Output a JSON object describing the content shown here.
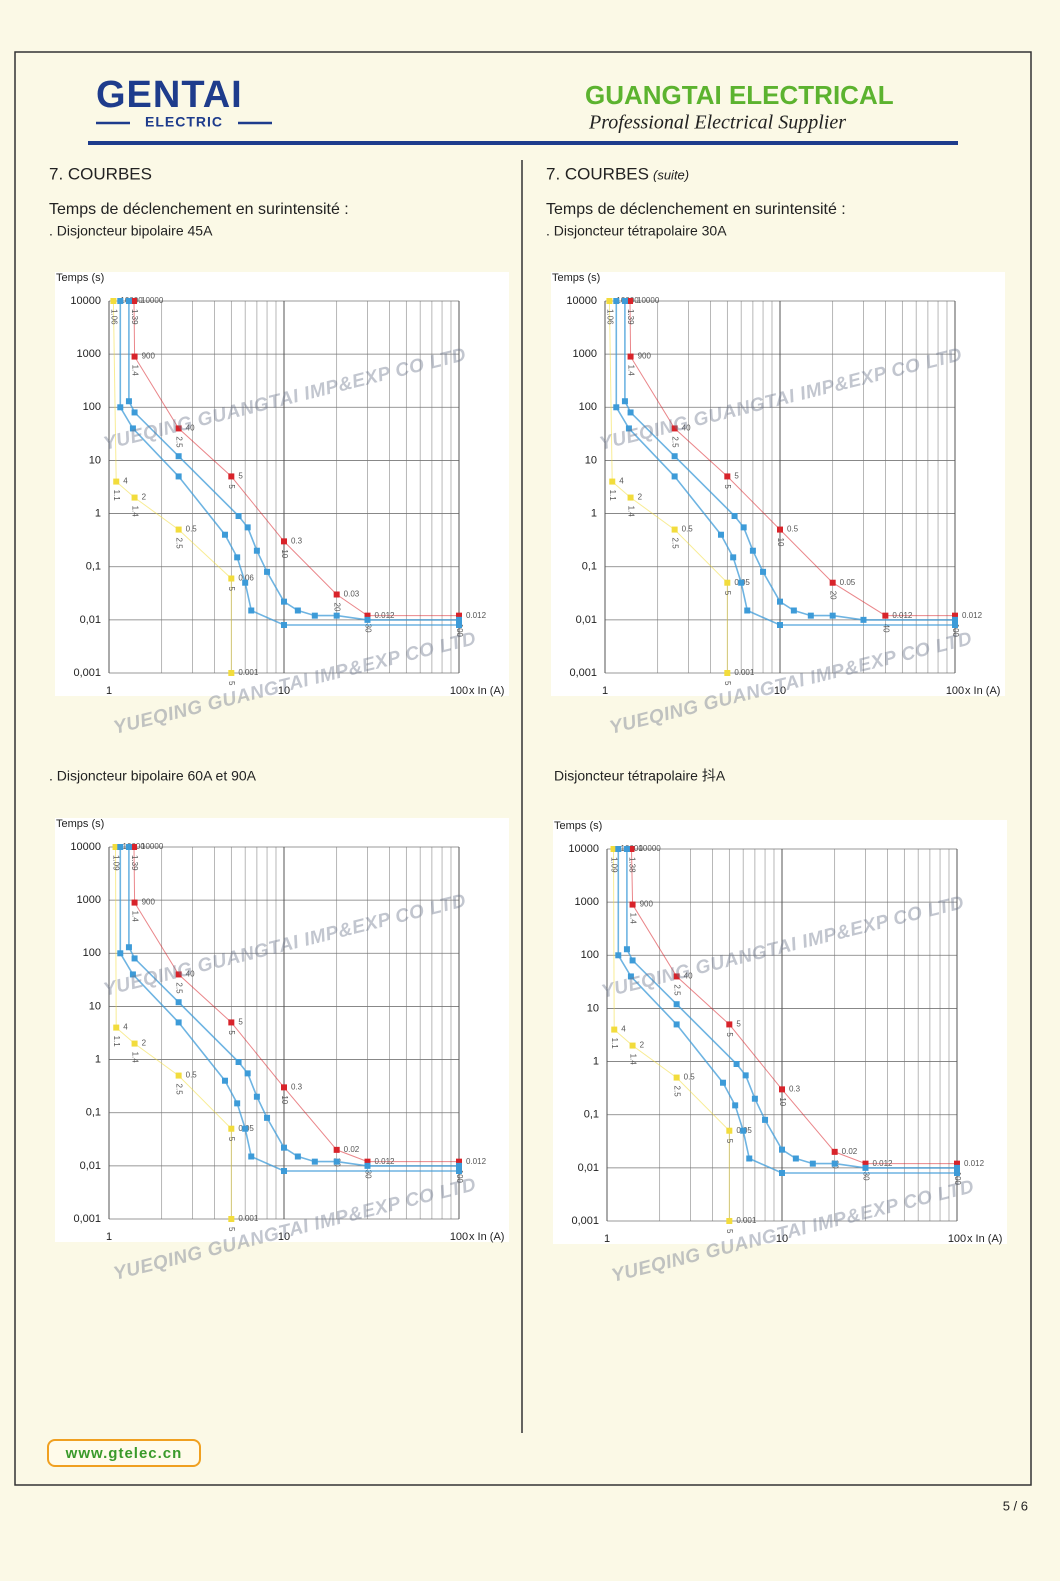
{
  "header": {
    "logo_main": "GENTAI",
    "logo_sub": "ELECTRIC",
    "company": "GUANGTAI ELECTRICAL",
    "tagline": "Professional Electrical Supplier"
  },
  "left": {
    "heading": "7. COURBES",
    "subheading": "Temps de déclenchement en surintensité :"
  },
  "right": {
    "heading": "7. COURBES",
    "heading_note": "(suite)",
    "subheading": "Temps de déclenchement en surintensité :"
  },
  "watermark": "YUEQING GUANGTAI IMP&EXP CO LTD",
  "footer": {
    "url": "www.gtelec.cn",
    "page": "5 / 6"
  },
  "chart_data": [
    {
      "type": "line",
      "caption": ". Disjoncteur bipolaire 45A",
      "y_label": "Temps (s)",
      "x_label": "x In (A)",
      "log_x": true,
      "log_y": true,
      "grid": true,
      "xlim": [
        1,
        100
      ],
      "ylim": [
        0.001,
        10000
      ],
      "xticks": [
        1,
        10,
        100
      ],
      "yticks": [
        10000,
        1000,
        100,
        10,
        1,
        {
          "value": 0.1,
          "label": "0,1"
        },
        {
          "value": 0.01,
          "label": "0,01"
        },
        {
          "value": 0.001,
          "label": "0,001"
        }
      ],
      "series": [
        {
          "color": "#f2dc3c",
          "labels": true,
          "x": [
            1.06,
            1.1,
            1.4,
            2.5,
            5,
            5
          ],
          "values": [
            10000,
            4,
            2,
            0.5,
            0.06,
            0.001
          ]
        },
        {
          "color": "#d8232a",
          "labels": true,
          "x": [
            1.39,
            1.4,
            2.5,
            5,
            10,
            20,
            30,
            100
          ],
          "values": [
            10000,
            900,
            40,
            5,
            0.3,
            0.03,
            0.012,
            0.012
          ]
        },
        {
          "color": "#3d9bd8",
          "labels": false,
          "x": [
            1.16,
            1.16,
            1.37,
            2.5,
            4.6,
            5.4,
            6,
            6.5,
            10,
            100
          ],
          "values": [
            10000,
            100,
            40,
            5,
            0.4,
            0.15,
            0.05,
            0.015,
            0.008,
            0.008
          ]
        },
        {
          "color": "#3d9bd8",
          "labels": false,
          "x": [
            1.3,
            1.3,
            1.4,
            2.5,
            5.5,
            6.2,
            7,
            8,
            10,
            12,
            15,
            20,
            30,
            100
          ],
          "values": [
            10000,
            130,
            80,
            12,
            0.9,
            0.55,
            0.2,
            0.08,
            0.022,
            0.015,
            0.012,
            0.012,
            0.01,
            0.01
          ]
        }
      ]
    },
    {
      "type": "line",
      "caption": ". Disjoncteur tétrapolaire 30A",
      "y_label": "Temps (s)",
      "x_label": "x In (A)",
      "log_x": true,
      "log_y": true,
      "grid": true,
      "xlim": [
        1,
        100
      ],
      "ylim": [
        0.001,
        10000
      ],
      "xticks": [
        1,
        10,
        100
      ],
      "yticks": [
        10000,
        1000,
        100,
        10,
        1,
        {
          "value": 0.1,
          "label": "0,1"
        },
        {
          "value": 0.01,
          "label": "0,01"
        },
        {
          "value": 0.001,
          "label": "0,001"
        }
      ],
      "series": [
        {
          "color": "#f2dc3c",
          "labels": true,
          "x": [
            1.06,
            1.1,
            1.4,
            2.5,
            5,
            5
          ],
          "values": [
            10000,
            4,
            2,
            0.5,
            0.05,
            0.001
          ]
        },
        {
          "color": "#d8232a",
          "labels": true,
          "x": [
            1.39,
            1.4,
            2.5,
            5,
            10,
            20,
            40,
            100
          ],
          "values": [
            10000,
            900,
            40,
            5,
            0.5,
            0.05,
            0.012,
            0.012
          ]
        },
        {
          "color": "#3d9bd8",
          "labels": false,
          "x": [
            1.16,
            1.16,
            1.37,
            2.5,
            4.6,
            5.4,
            6,
            6.5,
            10,
            100
          ],
          "values": [
            10000,
            100,
            40,
            5,
            0.4,
            0.15,
            0.05,
            0.015,
            0.008,
            0.008
          ]
        },
        {
          "color": "#3d9bd8",
          "labels": false,
          "x": [
            1.3,
            1.3,
            1.4,
            2.5,
            5.5,
            6.2,
            7,
            8,
            10,
            12,
            15,
            20,
            30,
            100
          ],
          "values": [
            10000,
            130,
            80,
            12,
            0.9,
            0.55,
            0.2,
            0.08,
            0.022,
            0.015,
            0.012,
            0.012,
            0.01,
            0.01
          ]
        }
      ]
    },
    {
      "type": "line",
      "caption": ". Disjoncteur bipolaire 60A et 90A",
      "y_label": "Temps (s)",
      "x_label": "x In (A)",
      "log_x": true,
      "log_y": true,
      "grid": true,
      "xlim": [
        1,
        100
      ],
      "ylim": [
        0.001,
        10000
      ],
      "xticks": [
        1,
        10,
        100
      ],
      "yticks": [
        10000,
        1000,
        100,
        10,
        1,
        {
          "value": 0.1,
          "label": "0,1"
        },
        {
          "value": 0.01,
          "label": "0,01"
        },
        {
          "value": 0.001,
          "label": "0,001"
        }
      ],
      "series": [
        {
          "color": "#f2dc3c",
          "labels": true,
          "x": [
            1.09,
            1.1,
            1.4,
            2.5,
            5,
            5
          ],
          "values": [
            10000,
            4,
            2,
            0.5,
            0.05,
            0.001
          ]
        },
        {
          "color": "#d8232a",
          "labels": true,
          "x": [
            1.39,
            1.4,
            2.5,
            5,
            10,
            20,
            30,
            100
          ],
          "values": [
            10000,
            900,
            40,
            5,
            0.3,
            0.02,
            0.012,
            0.012
          ]
        },
        {
          "color": "#3d9bd8",
          "labels": false,
          "x": [
            1.16,
            1.16,
            1.37,
            2.5,
            4.6,
            5.4,
            6,
            6.5,
            10,
            100
          ],
          "values": [
            10000,
            100,
            40,
            5,
            0.4,
            0.15,
            0.05,
            0.015,
            0.008,
            0.008
          ]
        },
        {
          "color": "#3d9bd8",
          "labels": false,
          "x": [
            1.3,
            1.3,
            1.4,
            2.5,
            5.5,
            6.2,
            7,
            8,
            10,
            12,
            15,
            20,
            30,
            100
          ],
          "values": [
            10000,
            130,
            80,
            12,
            0.9,
            0.55,
            0.2,
            0.08,
            0.022,
            0.015,
            0.012,
            0.012,
            0.01,
            0.01
          ]
        }
      ]
    },
    {
      "type": "line",
      "caption": "Disjoncteur tétrapolaire 抖A",
      "y_label": "Temps (s)",
      "x_label": "x In (A)",
      "log_x": true,
      "log_y": true,
      "grid": true,
      "xlim": [
        1,
        100
      ],
      "ylim": [
        0.001,
        10000
      ],
      "xticks": [
        1,
        10,
        100
      ],
      "yticks": [
        10000,
        1000,
        100,
        10,
        1,
        {
          "value": 0.1,
          "label": "0,1"
        },
        {
          "value": 0.01,
          "label": "0,01"
        },
        {
          "value": 0.001,
          "label": "0,001"
        }
      ],
      "series": [
        {
          "color": "#f2dc3c",
          "labels": true,
          "x": [
            1.09,
            1.1,
            1.4,
            2.5,
            5,
            5
          ],
          "values": [
            10000,
            4,
            2,
            0.5,
            0.05,
            0.001
          ]
        },
        {
          "color": "#d8232a",
          "labels": true,
          "x": [
            1.38,
            1.4,
            2.5,
            5,
            10,
            20,
            30,
            100
          ],
          "values": [
            10000,
            900,
            40,
            5,
            0.3,
            0.02,
            0.012,
            0.012
          ]
        },
        {
          "color": "#3d9bd8",
          "labels": false,
          "x": [
            1.16,
            1.16,
            1.37,
            2.5,
            4.6,
            5.4,
            6,
            6.5,
            10,
            100
          ],
          "values": [
            10000,
            100,
            40,
            5,
            0.4,
            0.15,
            0.05,
            0.015,
            0.008,
            0.008
          ]
        },
        {
          "color": "#3d9bd8",
          "labels": false,
          "x": [
            1.3,
            1.3,
            1.4,
            2.5,
            5.5,
            6.2,
            7,
            8,
            10,
            12,
            15,
            20,
            30,
            100
          ],
          "values": [
            10000,
            130,
            80,
            12,
            0.9,
            0.55,
            0.2,
            0.08,
            0.022,
            0.015,
            0.012,
            0.012,
            0.01,
            0.01
          ]
        }
      ]
    }
  ]
}
